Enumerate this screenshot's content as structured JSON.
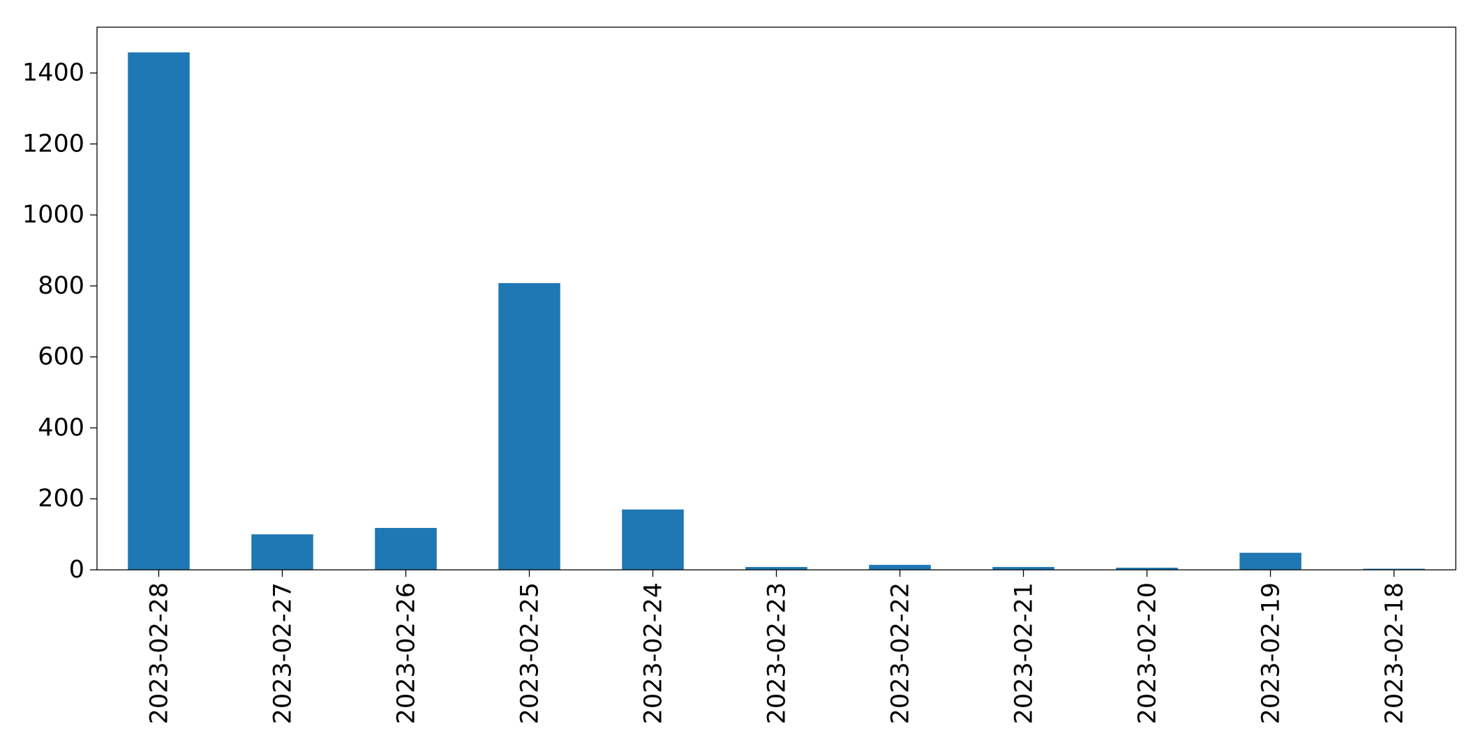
{
  "chart_data": {
    "type": "bar",
    "title": "",
    "xlabel": "",
    "ylabel": "",
    "categories": [
      "2023-02-28",
      "2023-02-27",
      "2023-02-26",
      "2023-02-25",
      "2023-02-24",
      "2023-02-23",
      "2023-02-22",
      "2023-02-21",
      "2023-02-20",
      "2023-02-19",
      "2023-02-18"
    ],
    "values": [
      1458,
      100,
      118,
      808,
      170,
      8,
      14,
      8,
      6,
      48,
      3
    ],
    "ylim": [
      0,
      1529
    ],
    "yticks": [
      0,
      200,
      400,
      600,
      800,
      1000,
      1200,
      1400
    ],
    "ytick_labels": [
      "0",
      "200",
      "400",
      "600",
      "800",
      "1000",
      "1200",
      "1400"
    ],
    "bar_color": "#1f77b4",
    "grid": false,
    "legend": "none"
  }
}
